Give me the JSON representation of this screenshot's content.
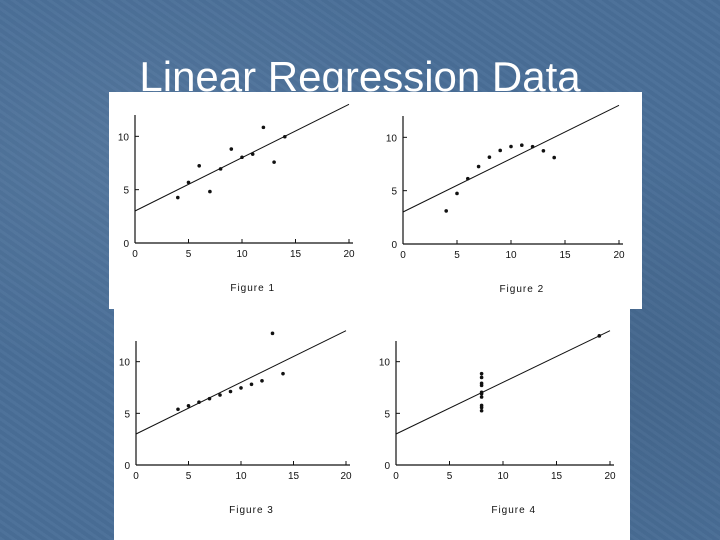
{
  "slide": {
    "title": "Linear Regression Data",
    "background": "#4a6f98"
  },
  "chart_data": [
    {
      "type": "scatter",
      "caption": "Figure 1",
      "xlim": [
        0,
        20
      ],
      "ylim": [
        0,
        12
      ],
      "xticks": [
        0,
        5,
        10,
        15,
        20
      ],
      "yticks": [
        0,
        5,
        10
      ],
      "x": [
        10,
        8,
        13,
        9,
        11,
        14,
        6,
        4,
        12,
        7,
        5
      ],
      "y": [
        8.04,
        6.95,
        7.58,
        8.81,
        8.33,
        9.96,
        7.24,
        4.26,
        10.84,
        4.82,
        5.68
      ],
      "fit": {
        "intercept": 3.0,
        "slope": 0.5
      }
    },
    {
      "type": "scatter",
      "caption": "Figure 2",
      "xlim": [
        0,
        20
      ],
      "ylim": [
        0,
        12
      ],
      "xticks": [
        0,
        5,
        10,
        15,
        20
      ],
      "yticks": [
        0,
        5,
        10
      ],
      "x": [
        10,
        8,
        13,
        9,
        11,
        14,
        6,
        4,
        12,
        7,
        5
      ],
      "y": [
        9.14,
        8.14,
        8.74,
        8.77,
        9.26,
        8.1,
        6.13,
        3.1,
        9.13,
        7.26,
        4.74
      ],
      "fit": {
        "intercept": 3.0,
        "slope": 0.5
      }
    },
    {
      "type": "scatter",
      "caption": "Figure 3",
      "xlim": [
        0,
        20
      ],
      "ylim": [
        0,
        12
      ],
      "xticks": [
        0,
        5,
        10,
        15,
        20
      ],
      "yticks": [
        0,
        5,
        10
      ],
      "x": [
        10,
        8,
        13,
        9,
        11,
        14,
        6,
        4,
        12,
        7,
        5
      ],
      "y": [
        7.46,
        6.77,
        12.74,
        7.11,
        7.81,
        8.84,
        6.08,
        5.39,
        8.15,
        6.42,
        5.73
      ],
      "fit": {
        "intercept": 3.0,
        "slope": 0.5
      }
    },
    {
      "type": "scatter",
      "caption": "Figure 4",
      "xlim": [
        0,
        20
      ],
      "ylim": [
        0,
        12
      ],
      "xticks": [
        0,
        5,
        10,
        15,
        20
      ],
      "yticks": [
        0,
        5,
        10
      ],
      "x": [
        8,
        8,
        8,
        8,
        8,
        8,
        8,
        19,
        8,
        8,
        8
      ],
      "y": [
        6.58,
        5.76,
        7.71,
        8.84,
        8.47,
        7.04,
        5.25,
        12.5,
        5.56,
        7.91,
        6.89
      ],
      "fit": {
        "intercept": 3.0,
        "slope": 0.5
      }
    }
  ]
}
